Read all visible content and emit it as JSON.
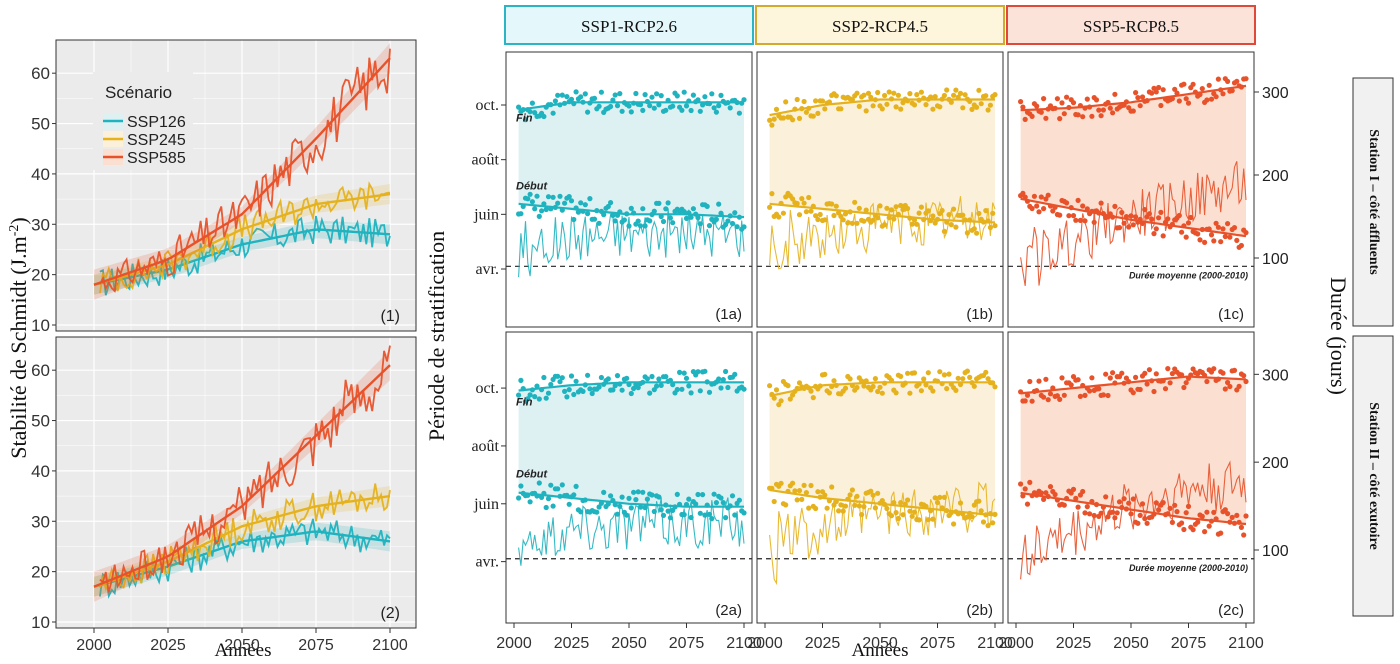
{
  "colors": {
    "ssp126": "#1FB3BF",
    "ssp245": "#E5B21E",
    "ssp585": "#E8522A",
    "panel_bg": "#EBEBEB",
    "grid": "#FFFFFF",
    "strip_126_fill": "#E4F7FA",
    "strip_126_border": "#2BB5C4",
    "strip_245_fill": "#FDF5DC",
    "strip_245_border": "#D3A92E",
    "strip_585_fill": "#FBE3D9",
    "strip_585_border": "#E0483A",
    "band_126": "#DDF1F3",
    "band_245": "#FBF1DA",
    "band_585": "#FBE0D2"
  },
  "left": {
    "ylabel": "Stabilité de Schmidt (J.m",
    "ylabel_sup": "-2",
    "ylabel_close": ")",
    "xlabel": "Années",
    "yticks": [
      "10",
      "20",
      "30",
      "40",
      "50",
      "60"
    ],
    "xticks": [
      "2000",
      "2025",
      "2050",
      "2075",
      "2100"
    ],
    "legend_title": "Scénario",
    "legend_items": [
      "SSP126",
      "SSP245",
      "SSP585"
    ],
    "panel_labels": [
      "(1)",
      "(2)"
    ]
  },
  "right": {
    "strips": [
      "SSP1-RCP2.6",
      "SSP2-RCP4.5",
      "SSP5-RCP8.5"
    ],
    "row_labels": [
      "Station I – côté affluents",
      "Station II – côté exutoire"
    ],
    "ylabel_left": "Période de stratification",
    "ylabel_right": "Durée (jours)",
    "xlabel": "Années",
    "month_ticks": [
      "oct.",
      "août",
      "juin",
      "avr."
    ],
    "duration_ticks": [
      "300",
      "200",
      "100"
    ],
    "xticks": [
      "2000",
      "2025",
      "2050",
      "2075",
      "2100"
    ],
    "fin_label": "Fin",
    "debut_label": "Début",
    "mean_label": "Durée moyenne (2000-2010)",
    "panel_labels": [
      [
        "(1a)",
        "(1b)",
        "(1c)"
      ],
      [
        "(2a)",
        "(2b)",
        "(2c)"
      ]
    ]
  },
  "chart_data": [
    {
      "type": "line",
      "id": "schmidt-station-1",
      "x_range": [
        2000,
        2100
      ],
      "ylim": [
        10,
        65
      ],
      "series": [
        {
          "name": "SSP126",
          "trend_x": [
            2000,
            2025,
            2050,
            2075,
            2100
          ],
          "trend_y": [
            18,
            21,
            26,
            29,
            28
          ]
        },
        {
          "name": "SSP245",
          "trend_x": [
            2000,
            2025,
            2050,
            2075,
            2100
          ],
          "trend_y": [
            18,
            22,
            29,
            34,
            36
          ]
        },
        {
          "name": "SSP585",
          "trend_x": [
            2000,
            2025,
            2050,
            2075,
            2100
          ],
          "trend_y": [
            18,
            23,
            32,
            47,
            63
          ]
        }
      ]
    },
    {
      "type": "line",
      "id": "schmidt-station-2",
      "x_range": [
        2000,
        2100
      ],
      "ylim": [
        10,
        65
      ],
      "series": [
        {
          "name": "SSP126",
          "trend_x": [
            2000,
            2025,
            2050,
            2075,
            2100
          ],
          "trend_y": [
            17,
            21,
            26,
            28,
            26
          ]
        },
        {
          "name": "SSP245",
          "trend_x": [
            2000,
            2025,
            2050,
            2075,
            2100
          ],
          "trend_y": [
            17,
            22,
            29,
            33,
            35
          ]
        },
        {
          "name": "SSP585",
          "trend_x": [
            2000,
            2025,
            2050,
            2075,
            2100
          ],
          "trend_y": [
            17,
            23,
            33,
            47,
            61
          ]
        }
      ]
    },
    {
      "type": "scatter",
      "id": "stratification-period",
      "x_range": [
        2000,
        2100
      ],
      "month_axis": {
        "oct.": 10,
        "août": 8,
        "juin": 6,
        "avr.": 4
      },
      "duration_axis_range": [
        60,
        330
      ],
      "mean_duration_2000_2010": 90,
      "panels": [
        {
          "id": "1a",
          "end_month_trend": [
            9.8,
            10.1,
            10.1,
            10.1,
            10.1
          ],
          "start_month_trend": [
            6.4,
            6.2,
            6.0,
            6.0,
            5.9
          ],
          "duration_trend": [
            110,
            125,
            130,
            130,
            130
          ]
        },
        {
          "id": "1b",
          "end_month_trend": [
            9.6,
            10.0,
            10.2,
            10.2,
            10.2
          ],
          "start_month_trend": [
            6.4,
            6.2,
            6.0,
            5.8,
            5.7
          ],
          "duration_trend": [
            105,
            125,
            140,
            145,
            150
          ]
        },
        {
          "id": "1c",
          "end_month_trend": [
            9.8,
            9.9,
            10.1,
            10.4,
            10.7
          ],
          "start_month_trend": [
            6.6,
            6.2,
            5.8,
            5.5,
            5.2
          ],
          "duration_trend": [
            95,
            120,
            150,
            170,
            190
          ]
        },
        {
          "id": "2a",
          "end_month_trend": [
            9.9,
            10.1,
            10.2,
            10.2,
            10.2
          ],
          "start_month_trend": [
            6.4,
            6.2,
            6.0,
            5.9,
            5.9
          ],
          "duration_trend": [
            110,
            125,
            130,
            130,
            130
          ]
        },
        {
          "id": "2b",
          "end_month_trend": [
            9.7,
            10.1,
            10.2,
            10.2,
            10.2
          ],
          "start_month_trend": [
            6.5,
            6.2,
            6.0,
            5.8,
            5.6
          ],
          "duration_trend": [
            105,
            125,
            140,
            145,
            150
          ]
        },
        {
          "id": "2c",
          "end_month_trend": [
            9.8,
            10.0,
            10.2,
            10.4,
            10.3
          ],
          "start_month_trend": [
            6.4,
            6.1,
            5.8,
            5.5,
            5.3
          ],
          "duration_trend": [
            95,
            120,
            150,
            170,
            175
          ]
        }
      ]
    }
  ]
}
